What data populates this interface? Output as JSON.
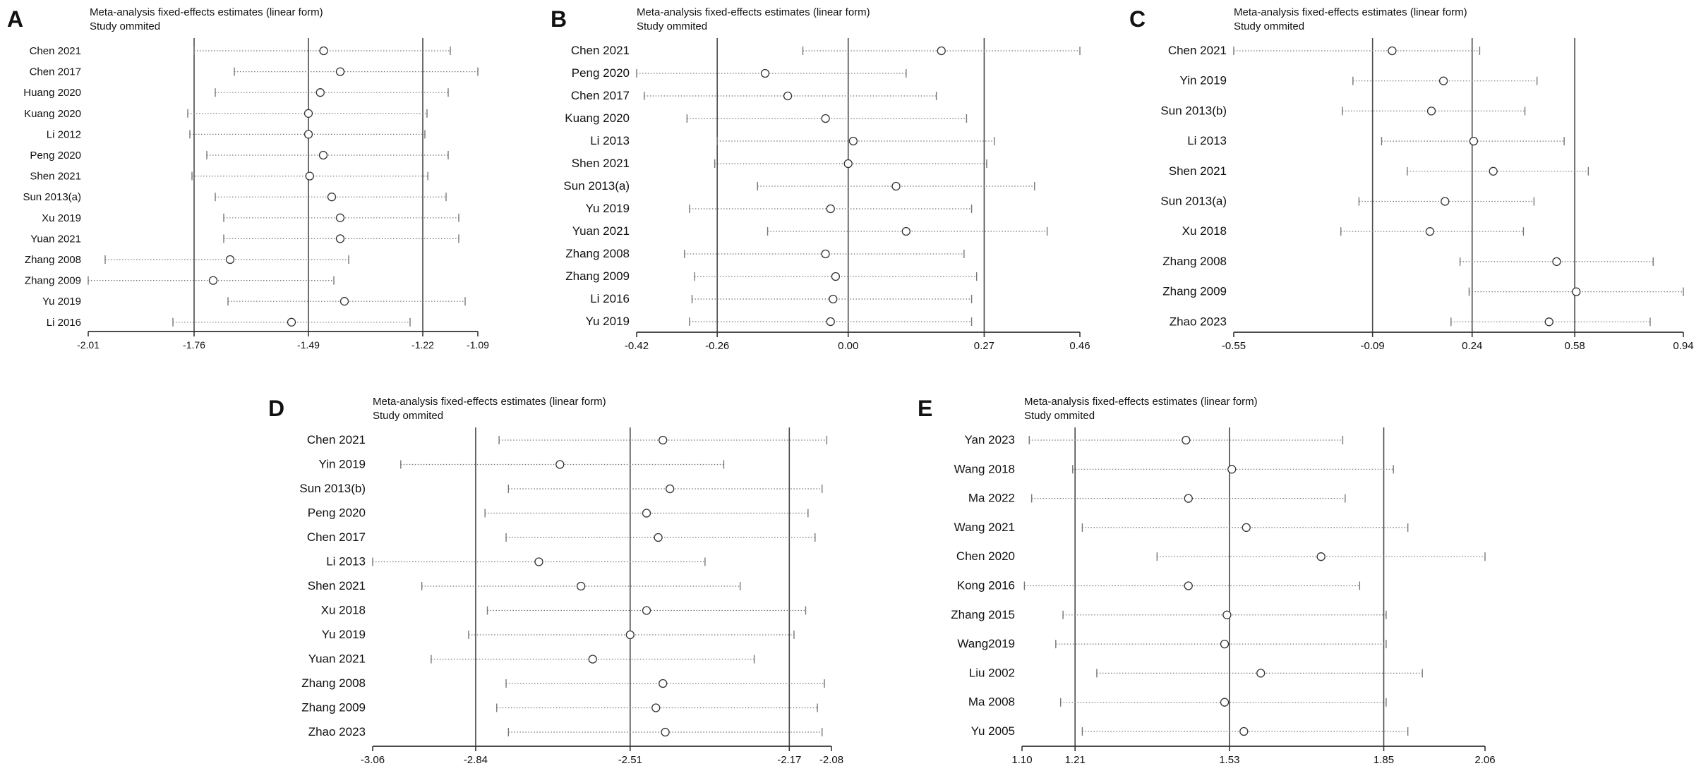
{
  "figure": "Sensitivity analysis: meta-analysis fixed-effects estimates (linear form)",
  "colors": {
    "axis": "#333333",
    "ref": "#4a4a4a",
    "ci": "#777777",
    "marker": "#333333",
    "text": "#111111"
  },
  "chart_data": [
    {
      "panel": "A",
      "type": "scatter",
      "title": "Meta-analysis fixed-effects estimates (linear form)",
      "subtitle": "Study ommited",
      "xlim": [
        -2.01,
        -1.09
      ],
      "ticks": [
        "-2.01",
        "-1.76",
        "-1.49",
        "-1.22",
        "-1.09"
      ],
      "ref_lines": [
        -1.76,
        -1.49,
        -1.22
      ],
      "studies": [
        {
          "label": "Chen 2021",
          "est": -1.454,
          "lo": -1.76,
          "hi": -1.155
        },
        {
          "label": "Chen 2017",
          "est": -1.415,
          "lo": -1.665,
          "hi": -1.09
        },
        {
          "label": "Huang 2020",
          "est": -1.462,
          "lo": -1.71,
          "hi": -1.16
        },
        {
          "label": "Kuang 2020",
          "est": -1.49,
          "lo": -1.775,
          "hi": -1.21
        },
        {
          "label": "Li 2012",
          "est": -1.49,
          "lo": -1.77,
          "hi": -1.215
        },
        {
          "label": "Peng 2020",
          "est": -1.455,
          "lo": -1.73,
          "hi": -1.16
        },
        {
          "label": "Shen 2021",
          "est": -1.487,
          "lo": -1.765,
          "hi": -1.208
        },
        {
          "label": "Sun 2013(a)",
          "est": -1.435,
          "lo": -1.71,
          "hi": -1.165
        },
        {
          "label": "Xu 2019",
          "est": -1.415,
          "lo": -1.69,
          "hi": -1.135
        },
        {
          "label": "Yuan 2021",
          "est": -1.415,
          "lo": -1.69,
          "hi": -1.135
        },
        {
          "label": "Zhang 2008",
          "est": -1.675,
          "lo": -1.97,
          "hi": -1.395
        },
        {
          "label": "Zhang 2009",
          "est": -1.715,
          "lo": -2.01,
          "hi": -1.43
        },
        {
          "label": "Yu 2019",
          "est": -1.405,
          "lo": -1.68,
          "hi": -1.12
        },
        {
          "label": "Li 2016",
          "est": -1.53,
          "lo": -1.81,
          "hi": -1.25
        }
      ]
    },
    {
      "panel": "B",
      "type": "scatter",
      "title": "Meta-analysis fixed-effects estimates (linear form)",
      "subtitle": "Study ommited",
      "xlim": [
        -0.42,
        0.46
      ],
      "ticks": [
        "-0.42",
        "-0.26",
        "0.00",
        "0.27",
        "0.46"
      ],
      "ref_lines": [
        -0.26,
        0.0,
        0.27
      ],
      "studies": [
        {
          "label": "Chen 2021",
          "est": 0.185,
          "lo": -0.09,
          "hi": 0.46
        },
        {
          "label": "Peng 2020",
          "est": -0.165,
          "lo": -0.42,
          "hi": 0.115
        },
        {
          "label": "Chen 2017",
          "est": -0.12,
          "lo": -0.405,
          "hi": 0.175
        },
        {
          "label": "Kuang 2020",
          "est": -0.045,
          "lo": -0.32,
          "hi": 0.235
        },
        {
          "label": "Li 2013",
          "est": 0.01,
          "lo": -0.26,
          "hi": 0.29
        },
        {
          "label": "Shen 2021",
          "est": 0.0,
          "lo": -0.265,
          "hi": 0.275
        },
        {
          "label": "Sun 2013(a)",
          "est": 0.095,
          "lo": -0.18,
          "hi": 0.37
        },
        {
          "label": "Yu 2019",
          "est": -0.035,
          "lo": -0.315,
          "hi": 0.245
        },
        {
          "label": "Yuan 2021",
          "est": 0.115,
          "lo": -0.16,
          "hi": 0.395
        },
        {
          "label": "Zhang 2008",
          "est": -0.045,
          "lo": -0.325,
          "hi": 0.23
        },
        {
          "label": "Zhang 2009",
          "est": -0.025,
          "lo": -0.305,
          "hi": 0.255
        },
        {
          "label": "Li 2016",
          "est": -0.03,
          "lo": -0.31,
          "hi": 0.245
        },
        {
          "label": "Yu 2019",
          "est": -0.035,
          "lo": -0.315,
          "hi": 0.245
        }
      ]
    },
    {
      "panel": "C",
      "type": "scatter",
      "title": "Meta-analysis fixed-effects estimates (linear form)",
      "subtitle": "Study ommited",
      "xlim": [
        -0.55,
        0.94
      ],
      "ticks": [
        "-0.55",
        "-0.09",
        "0.24",
        "0.58",
        "0.94"
      ],
      "ref_lines": [
        -0.09,
        0.24,
        0.58
      ],
      "studies": [
        {
          "label": "Chen 2021",
          "est": -0.025,
          "lo": -0.55,
          "hi": 0.265
        },
        {
          "label": "Yin 2019",
          "est": 0.145,
          "lo": -0.155,
          "hi": 0.455
        },
        {
          "label": "Sun 2013(b)",
          "est": 0.105,
          "lo": -0.19,
          "hi": 0.415
        },
        {
          "label": "Li 2013",
          "est": 0.245,
          "lo": -0.06,
          "hi": 0.545
        },
        {
          "label": "Shen 2021",
          "est": 0.31,
          "lo": 0.025,
          "hi": 0.625
        },
        {
          "label": "Sun 2013(a)",
          "est": 0.15,
          "lo": -0.135,
          "hi": 0.445
        },
        {
          "label": "Xu 2018",
          "est": 0.1,
          "lo": -0.195,
          "hi": 0.41
        },
        {
          "label": "Zhang 2008",
          "est": 0.52,
          "lo": 0.2,
          "hi": 0.84
        },
        {
          "label": "Zhang 2009",
          "est": 0.585,
          "lo": 0.23,
          "hi": 0.94
        },
        {
          "label": "Zhao 2023",
          "est": 0.495,
          "lo": 0.17,
          "hi": 0.83
        }
      ]
    },
    {
      "panel": "D",
      "type": "scatter",
      "title": "Meta-analysis fixed-effects estimates (linear form)",
      "subtitle": "Study ommited",
      "xlim": [
        -3.06,
        -2.08
      ],
      "ticks": [
        "-3.06",
        "-2.84",
        "-2.51",
        "-2.17",
        "-2.08"
      ],
      "ref_lines": [
        -2.84,
        -2.51,
        -2.17
      ],
      "studies": [
        {
          "label": "Chen 2021",
          "est": -2.44,
          "lo": -2.79,
          "hi": -2.09
        },
        {
          "label": "Yin 2019",
          "est": -2.66,
          "lo": -3.0,
          "hi": -2.31
        },
        {
          "label": "Sun 2013(b)",
          "est": -2.425,
          "lo": -2.77,
          "hi": -2.1
        },
        {
          "label": "Peng 2020",
          "est": -2.475,
          "lo": -2.82,
          "hi": -2.13
        },
        {
          "label": "Chen 2017",
          "est": -2.45,
          "lo": -2.775,
          "hi": -2.115
        },
        {
          "label": "Li 2013",
          "est": -2.705,
          "lo": -3.06,
          "hi": -2.35
        },
        {
          "label": "Shen 2021",
          "est": -2.615,
          "lo": -2.955,
          "hi": -2.275
        },
        {
          "label": "Xu 2018",
          "est": -2.475,
          "lo": -2.815,
          "hi": -2.135
        },
        {
          "label": "Yu 2019",
          "est": -2.51,
          "lo": -2.855,
          "hi": -2.16
        },
        {
          "label": "Yuan 2021",
          "est": -2.59,
          "lo": -2.935,
          "hi": -2.245
        },
        {
          "label": "Zhang 2008",
          "est": -2.44,
          "lo": -2.775,
          "hi": -2.095
        },
        {
          "label": "Zhang 2009",
          "est": -2.455,
          "lo": -2.795,
          "hi": -2.11
        },
        {
          "label": "Zhao 2023",
          "est": -2.435,
          "lo": -2.77,
          "hi": -2.1
        }
      ]
    },
    {
      "panel": "E",
      "type": "scatter",
      "title": "Meta-analysis fixed-effects estimates (linear form)",
      "subtitle": "Study ommited",
      "xlim": [
        1.1,
        2.06
      ],
      "ticks": [
        "1.10",
        "1.21",
        "1.53",
        "1.85",
        "2.06"
      ],
      "ref_lines": [
        1.21,
        1.53,
        1.85
      ],
      "studies": [
        {
          "label": "Yan 2023",
          "est": 1.44,
          "lo": 1.115,
          "hi": 1.765
        },
        {
          "label": "Wang 2018",
          "est": 1.535,
          "lo": 1.205,
          "hi": 1.87
        },
        {
          "label": "Ma 2022",
          "est": 1.445,
          "lo": 1.12,
          "hi": 1.77
        },
        {
          "label": "Wang 2021",
          "est": 1.565,
          "lo": 1.225,
          "hi": 1.9
        },
        {
          "label": "Chen 2020",
          "est": 1.72,
          "lo": 1.38,
          "hi": 2.06
        },
        {
          "label": "Kong 2016",
          "est": 1.445,
          "lo": 1.105,
          "hi": 1.8
        },
        {
          "label": "Zhang 2015",
          "est": 1.525,
          "lo": 1.185,
          "hi": 1.855
        },
        {
          "label": "Wang2019",
          "est": 1.52,
          "lo": 1.17,
          "hi": 1.855
        },
        {
          "label": "Liu 2002",
          "est": 1.595,
          "lo": 1.255,
          "hi": 1.93
        },
        {
          "label": "Ma 2008",
          "est": 1.52,
          "lo": 1.18,
          "hi": 1.855
        },
        {
          "label": "Yu 2005",
          "est": 1.56,
          "lo": 1.225,
          "hi": 1.9
        }
      ]
    }
  ]
}
